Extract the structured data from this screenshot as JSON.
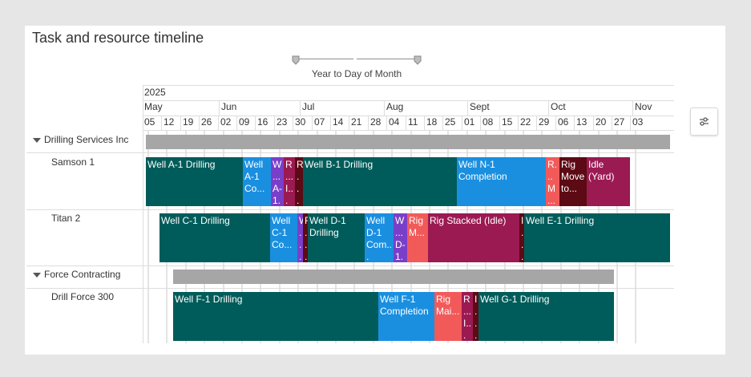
{
  "title": "Task and resource timeline",
  "slider": {
    "label": "Year to Day of Month"
  },
  "header": {
    "year": "2025",
    "months": [
      "May",
      "Jun",
      "Jul",
      "Aug",
      "Sept",
      "Oct",
      "Nov"
    ],
    "days": [
      "05",
      "12",
      "19",
      "26",
      "02",
      "09",
      "16",
      "23",
      "30",
      "07",
      "14",
      "21",
      "28",
      "04",
      "11",
      "18",
      "25",
      "01",
      "08",
      "15",
      "22",
      "29",
      "06",
      "13",
      "20",
      "27",
      "03"
    ]
  },
  "rows": {
    "group1": "Drilling Services Inc",
    "samson": "Samson 1",
    "titan": "Titan 2",
    "group2": "Force Contracting",
    "drill": "Drill Force 300"
  },
  "colors": {
    "teal": "#005c5a",
    "blue": "#1a8fe0",
    "purple": "#7a3fc8",
    "magenta": "#9b1a52",
    "maroon": "#5c0a14",
    "red": "#f25a5a",
    "gray": "#a6a6a6"
  },
  "bars": {
    "samson": [
      "Well A-1 Drilling",
      "Well A-1 Co...",
      "W... A-1...",
      "R... I... (...",
      "R... M... t...",
      "Well B-1 Drilling",
      "Well N-1 Completion",
      "R... M... &...",
      "Rig Move to...",
      "Idle (Yard)"
    ],
    "titan": [
      "Well C-1 Drilling",
      "Well C-1 Co...",
      "W... (...",
      "R... M... t...",
      "Well D-1 Drilling",
      "Well D-1 Com...",
      "W... D-1...",
      "Rig M...",
      "Rig Stacked (Idle)",
      "I... I...",
      "Well E-1 Drilling"
    ],
    "drill": [
      "Well F-1 Drilling",
      "Well F-1 Completion",
      "Rig Mai...",
      "R... I... (...",
      "I... I...",
      "Well G-1 Drilling"
    ]
  }
}
